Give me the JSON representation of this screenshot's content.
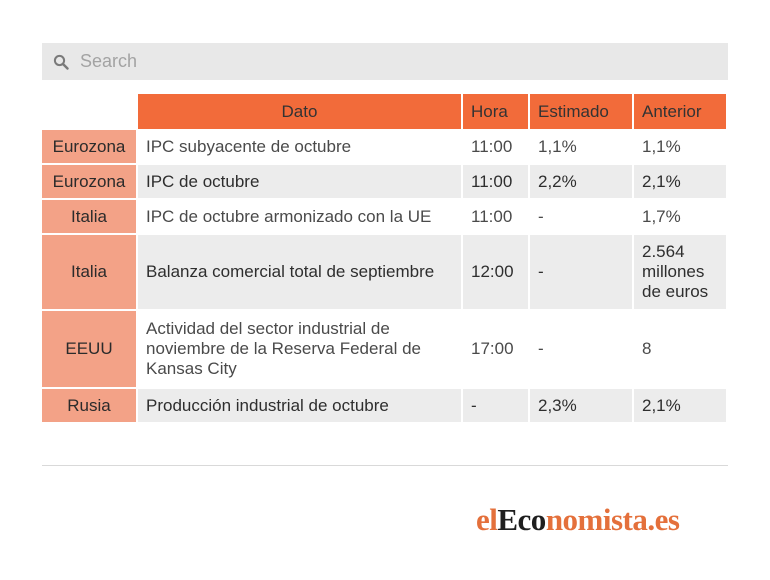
{
  "search": {
    "placeholder": "Search",
    "value": ""
  },
  "table": {
    "headers": {
      "dato": "Dato",
      "hora": "Hora",
      "estimado": "Estimado",
      "anterior": "Anterior"
    },
    "rows": [
      {
        "pais": "Eurozona",
        "dato": "IPC subyacente de octubre",
        "hora": "11:00",
        "estimado": "1,1%",
        "anterior": "1,1%"
      },
      {
        "pais": "Eurozona",
        "dato": "IPC de octubre",
        "hora": "11:00",
        "estimado": "2,2%",
        "anterior": "2,1%"
      },
      {
        "pais": "Italia",
        "dato": "IPC de octubre armonizado con la UE",
        "hora": "11:00",
        "estimado": "-",
        "anterior": "1,7%"
      },
      {
        "pais": "Italia",
        "dato": "Balanza comercial total de septiembre",
        "hora": "12:00",
        "estimado": "-",
        "anterior": "2.564 millones de euros"
      },
      {
        "pais": "EEUU",
        "dato": "Actividad del sector industrial de noviembre de la Reserva Federal de Kansas City",
        "hora": "17:00",
        "estimado": "-",
        "anterior": "8"
      },
      {
        "pais": "Rusia",
        "dato": "Producción industrial de octubre",
        "hora": "-",
        "estimado": "2,3%",
        "anterior": "2,1%"
      }
    ]
  },
  "logo": {
    "part1": "el",
    "part2": "Eco",
    "part3": "nomista",
    "part4": ".es"
  },
  "colors": {
    "header_bg": "#f26b3a",
    "country_bg": "#f3a287",
    "logo_orange": "#e4703b",
    "search_bg": "#e8e8e8"
  },
  "icons": {
    "search": "search-icon"
  }
}
